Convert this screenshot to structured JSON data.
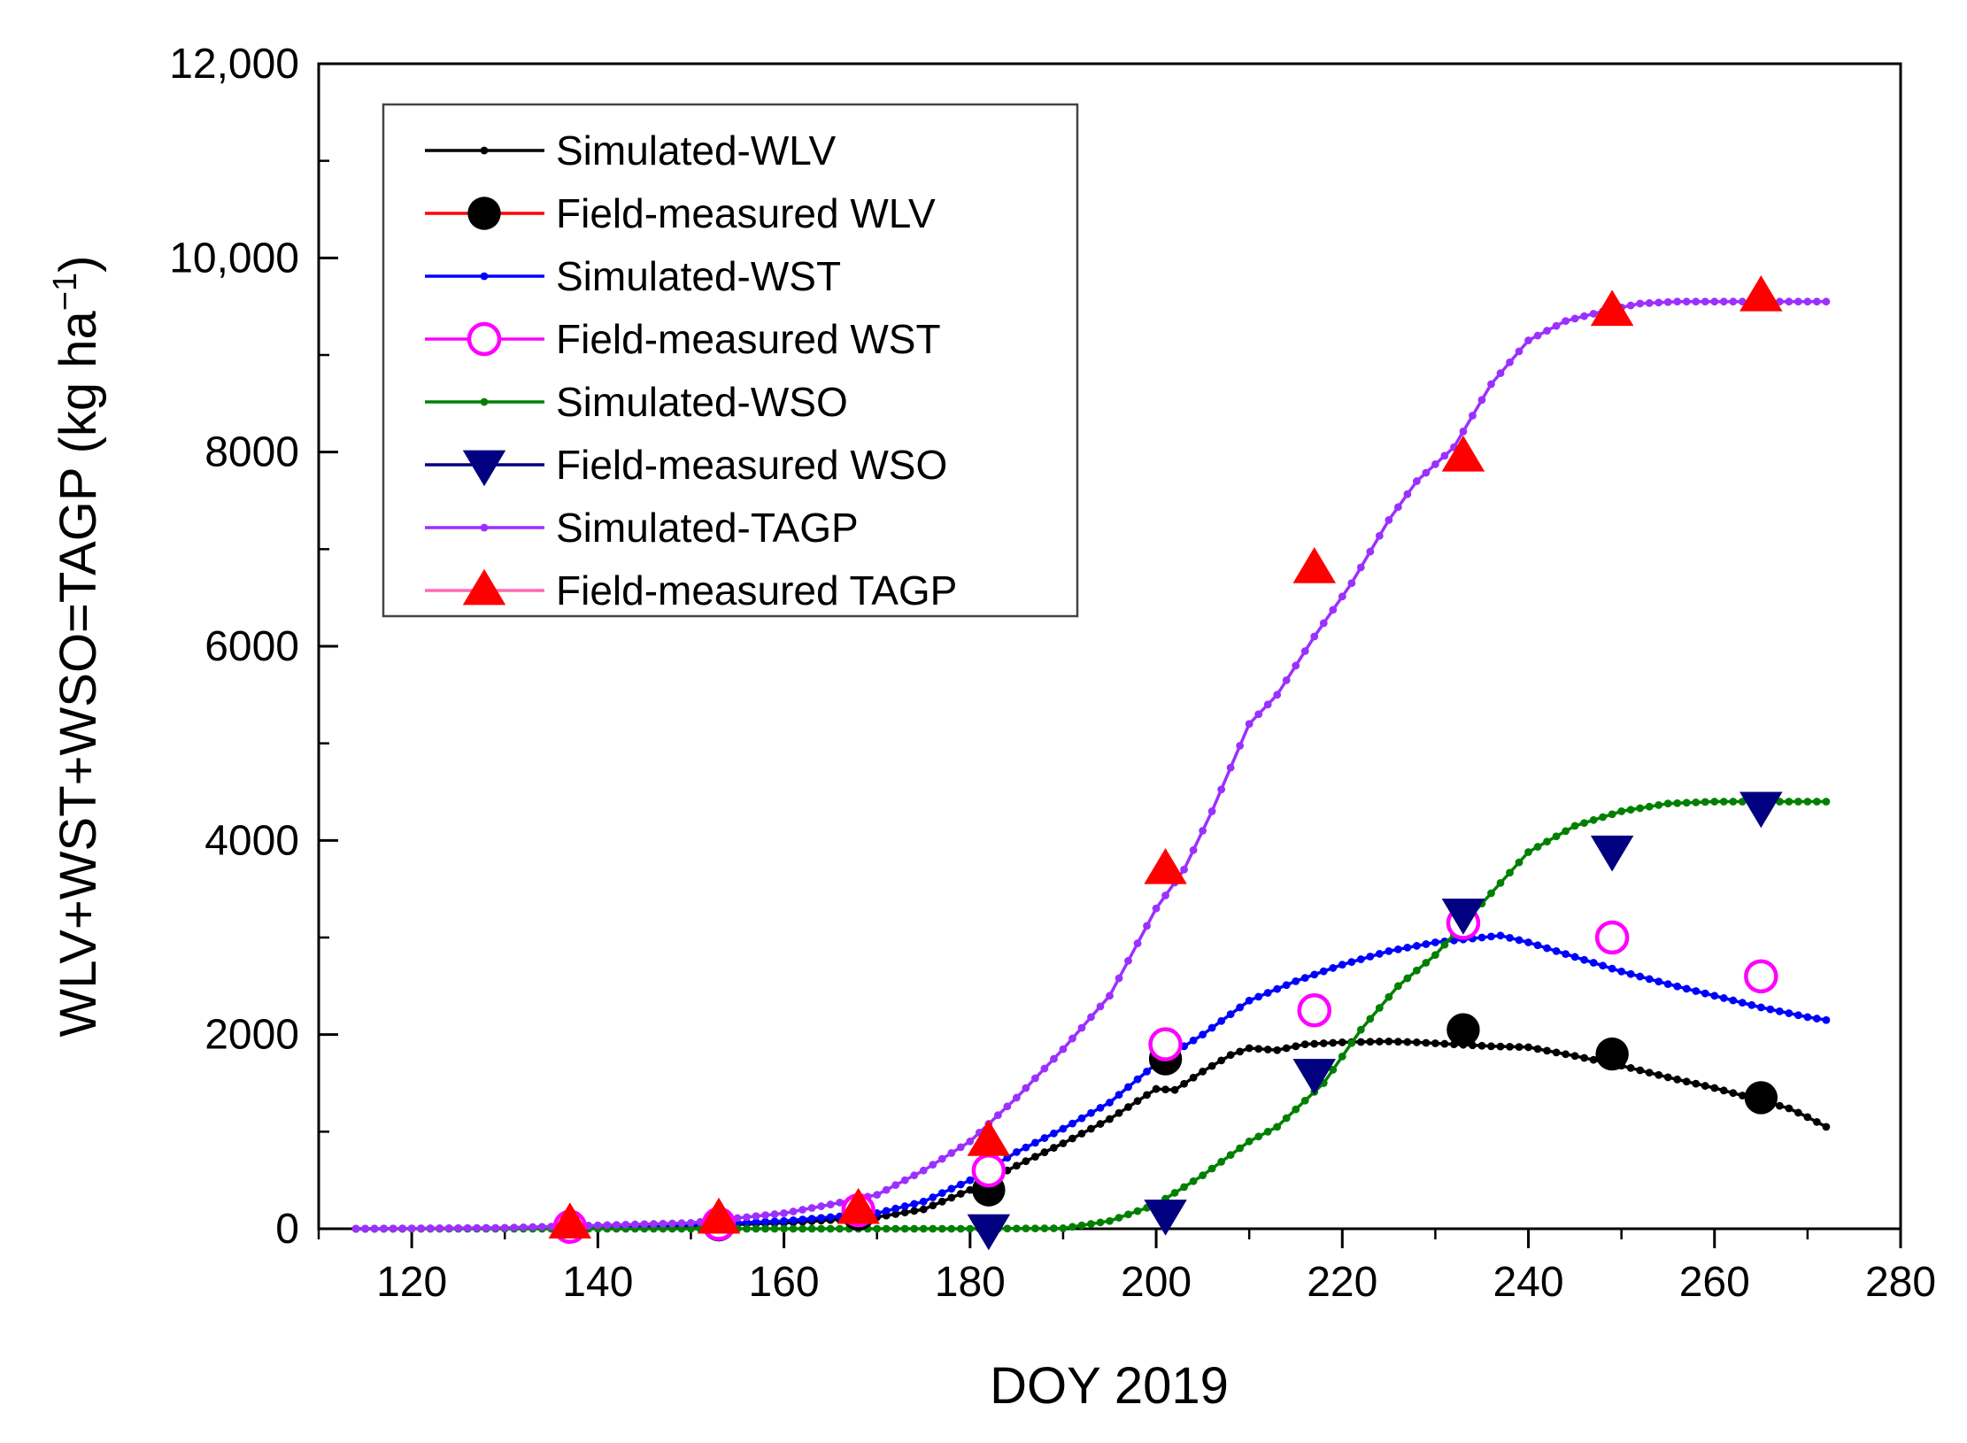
{
  "chart_data": {
    "type": "line",
    "title": "",
    "xlabel": "DOY 2019",
    "ylabel": "WLV+WST+WSO=TAGP (kg ha",
    "ylabel_unit_superscript": "−1",
    "ylabel_close": ")",
    "xlim": [
      110,
      280
    ],
    "ylim": [
      0,
      12000
    ],
    "x_ticks": [
      120,
      140,
      160,
      180,
      200,
      220,
      240,
      260,
      280
    ],
    "y_ticks": [
      0,
      2000,
      4000,
      6000,
      8000,
      10000,
      12000
    ],
    "x_tick_labels": [
      "120",
      "140",
      "160",
      "180",
      "200",
      "220",
      "240",
      "260",
      "280"
    ],
    "y_tick_labels": [
      "0",
      "2000",
      "4000",
      "6000",
      "8000",
      "10,000",
      "12,000"
    ],
    "legend_position": "top-left",
    "series": [
      {
        "name": "Simulated-WLV",
        "kind": "line",
        "color": "#000000",
        "x": [
          114,
          130,
          150,
          160,
          170,
          175,
          180,
          185,
          190,
          195,
          200,
          202,
          205,
          208,
          210,
          213,
          216,
          220,
          225,
          228,
          232,
          236,
          240,
          245,
          250,
          255,
          260,
          265,
          268,
          270,
          272
        ],
        "y": [
          0,
          5,
          30,
          60,
          120,
          200,
          400,
          650,
          880,
          1130,
          1440,
          1430,
          1620,
          1790,
          1860,
          1840,
          1900,
          1920,
          1930,
          1920,
          1900,
          1880,
          1870,
          1780,
          1680,
          1560,
          1450,
          1320,
          1240,
          1150,
          1050
        ]
      },
      {
        "name": "Field-measured WLV",
        "kind": "marker",
        "marker": "circle",
        "color": "#000000",
        "x": [
          137,
          153,
          168,
          182,
          201,
          233,
          249,
          265
        ],
        "y": [
          20,
          40,
          150,
          400,
          1750,
          2050,
          1800,
          1350
        ]
      },
      {
        "name": "Simulated-WST",
        "kind": "line",
        "color": "#0000ff",
        "x": [
          114,
          130,
          150,
          160,
          170,
          175,
          180,
          185,
          190,
          195,
          200,
          205,
          210,
          215,
          220,
          225,
          230,
          235,
          237,
          240,
          245,
          250,
          255,
          260,
          265,
          270,
          272
        ],
        "y": [
          0,
          5,
          40,
          80,
          160,
          280,
          500,
          790,
          1030,
          1300,
          1700,
          2000,
          2350,
          2550,
          2720,
          2860,
          2950,
          3000,
          3020,
          2950,
          2800,
          2650,
          2520,
          2400,
          2280,
          2180,
          2150
        ]
      },
      {
        "name": "Field-measured WST",
        "kind": "marker",
        "marker": "open-circle",
        "color": "#ff00ff",
        "x": [
          137,
          153,
          168,
          182,
          201,
          217,
          233,
          249,
          265
        ],
        "y": [
          20,
          50,
          190,
          600,
          1900,
          2250,
          3150,
          3000,
          2600
        ]
      },
      {
        "name": "Simulated-WSO",
        "kind": "line",
        "color": "#008000",
        "x": [
          114,
          150,
          180,
          190,
          195,
          200,
          205,
          210,
          213,
          218,
          222,
          226,
          230,
          235,
          240,
          245,
          250,
          255,
          260,
          265,
          272
        ],
        "y": [
          0,
          0,
          0,
          5,
          80,
          250,
          550,
          900,
          1050,
          1500,
          2050,
          2500,
          2820,
          3350,
          3880,
          4150,
          4300,
          4380,
          4400,
          4400,
          4400
        ]
      },
      {
        "name": "Field-measured WSO",
        "kind": "marker",
        "marker": "triangle-down",
        "color": "#000080",
        "x": [
          182,
          201,
          217,
          233,
          249,
          265
        ],
        "y": [
          0,
          150,
          1600,
          3250,
          3900,
          4350
        ]
      },
      {
        "name": "Simulated-TAGP",
        "kind": "line",
        "color": "#9b30ff",
        "x": [
          114,
          130,
          150,
          160,
          165,
          170,
          175,
          180,
          185,
          190,
          195,
          200,
          203,
          206,
          210,
          213,
          217,
          221,
          225,
          228,
          232,
          236,
          240,
          244,
          248,
          252,
          256,
          260,
          265,
          272
        ],
        "y": [
          0,
          10,
          60,
          160,
          250,
          350,
          600,
          900,
          1350,
          1850,
          2400,
          3300,
          3700,
          4300,
          5200,
          5500,
          6100,
          6650,
          7300,
          7700,
          8050,
          8700,
          9150,
          9350,
          9450,
          9530,
          9550,
          9550,
          9550,
          9550
        ]
      },
      {
        "name": "Field-measured TAGP",
        "kind": "marker",
        "marker": "triangle-up",
        "color": "#ff0000",
        "x": [
          137,
          153,
          168,
          182,
          201,
          217,
          233,
          249,
          265
        ],
        "y": [
          50,
          100,
          200,
          900,
          3700,
          6800,
          7950,
          9450,
          9600
        ]
      }
    ],
    "legend": [
      {
        "label": "Simulated-WLV",
        "line_color": "#000000",
        "marker": "dot",
        "marker_color": "#000000"
      },
      {
        "label": "Field-measured WLV",
        "line_color": "#ff0000",
        "marker": "circle",
        "marker_color": "#000000"
      },
      {
        "label": "Simulated-WST",
        "line_color": "#0000ff",
        "marker": "dot",
        "marker_color": "#0000ff"
      },
      {
        "label": "Field-measured WST",
        "line_color": "#ff00ff",
        "marker": "open-circle",
        "marker_color": "#ff00ff"
      },
      {
        "label": "Simulated-WSO",
        "line_color": "#008000",
        "marker": "dot",
        "marker_color": "#008000"
      },
      {
        "label": "Field-measured WSO",
        "line_color": "#000080",
        "marker": "triangle-down",
        "marker_color": "#000080"
      },
      {
        "label": "Simulated-TAGP",
        "line_color": "#9b30ff",
        "marker": "dot",
        "marker_color": "#9b30ff"
      },
      {
        "label": "Field-measured TAGP",
        "line_color": "#ff69b4",
        "marker": "triangle-up",
        "marker_color": "#ff0000"
      }
    ]
  }
}
